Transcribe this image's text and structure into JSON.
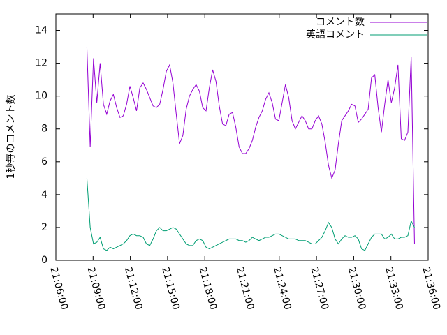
{
  "chart_data": {
    "type": "line",
    "y_label": "1秒毎のコメント数",
    "x": [
      "21:08:30",
      "21:08:46",
      "21:09:02",
      "21:09:18",
      "21:09:34",
      "21:09:50",
      "21:10:06",
      "21:10:22",
      "21:10:38",
      "21:10:54",
      "21:11:10",
      "21:11:26",
      "21:11:42",
      "21:11:58",
      "21:12:14",
      "21:12:30",
      "21:12:46",
      "21:13:02",
      "21:13:18",
      "21:13:34",
      "21:13:50",
      "21:14:06",
      "21:14:22",
      "21:14:38",
      "21:14:54",
      "21:15:10",
      "21:15:26",
      "21:15:42",
      "21:15:58",
      "21:16:14",
      "21:16:30",
      "21:16:46",
      "21:17:02",
      "21:17:18",
      "21:17:34",
      "21:17:50",
      "21:18:06",
      "21:18:22",
      "21:18:38",
      "21:18:54",
      "21:19:10",
      "21:19:26",
      "21:19:42",
      "21:19:58",
      "21:20:14",
      "21:20:30",
      "21:20:46",
      "21:21:02",
      "21:21:18",
      "21:21:34",
      "21:21:50",
      "21:22:06",
      "21:22:22",
      "21:22:38",
      "21:22:54",
      "21:23:10",
      "21:23:26",
      "21:23:42",
      "21:23:58",
      "21:24:14",
      "21:24:30",
      "21:24:46",
      "21:25:02",
      "21:25:18",
      "21:25:34",
      "21:25:50",
      "21:26:06",
      "21:26:22",
      "21:26:38",
      "21:26:54",
      "21:27:10",
      "21:27:26",
      "21:27:42",
      "21:27:58",
      "21:28:14",
      "21:28:30",
      "21:28:46",
      "21:29:02",
      "21:29:18",
      "21:29:34",
      "21:29:50",
      "21:30:06",
      "21:30:22",
      "21:30:38",
      "21:30:54",
      "21:31:10",
      "21:31:26",
      "21:31:42",
      "21:31:58",
      "21:32:14",
      "21:32:30",
      "21:32:46",
      "21:33:02",
      "21:33:18",
      "21:33:34",
      "21:33:50",
      "21:34:06",
      "21:34:22",
      "21:34:38",
      "21:34:54"
    ],
    "series": [
      {
        "name": "コメント数",
        "color": "#9400d3",
        "values": [
          13.0,
          6.9,
          12.3,
          9.6,
          12.0,
          9.5,
          8.9,
          9.7,
          10.1,
          9.3,
          8.7,
          8.8,
          9.5,
          10.6,
          9.9,
          9.1,
          10.5,
          10.8,
          10.4,
          9.9,
          9.4,
          9.3,
          9.5,
          10.4,
          11.5,
          11.9,
          10.8,
          8.9,
          7.1,
          7.6,
          9.2,
          10.0,
          10.4,
          10.7,
          10.3,
          9.3,
          9.1,
          10.5,
          11.6,
          10.9,
          9.4,
          8.3,
          8.2,
          8.9,
          9.0,
          8.1,
          6.9,
          6.5,
          6.5,
          6.8,
          7.3,
          8.1,
          8.7,
          9.1,
          9.8,
          10.2,
          9.6,
          8.6,
          8.5,
          9.6,
          10.7,
          9.9,
          8.5,
          8.0,
          8.4,
          8.8,
          8.5,
          8.0,
          8.0,
          8.5,
          8.8,
          8.3,
          7.2,
          5.8,
          5.0,
          5.5,
          7.1,
          8.5,
          8.8,
          9.1,
          9.5,
          9.4,
          8.4,
          8.6,
          8.9,
          9.2,
          11.1,
          11.3,
          9.3,
          7.8,
          9.5,
          11.0,
          9.6,
          10.5,
          11.9,
          7.4,
          7.3,
          7.8,
          12.4,
          1.0
        ]
      },
      {
        "name": "英語コメント",
        "color": "#009e73",
        "values": [
          5.0,
          2.0,
          1.0,
          1.1,
          1.4,
          0.7,
          0.6,
          0.8,
          0.7,
          0.8,
          0.9,
          1.0,
          1.2,
          1.5,
          1.6,
          1.5,
          1.5,
          1.4,
          1.0,
          0.9,
          1.3,
          1.8,
          2.0,
          1.8,
          1.8,
          1.9,
          2.0,
          1.9,
          1.6,
          1.3,
          1.0,
          0.9,
          0.9,
          1.2,
          1.3,
          1.2,
          0.8,
          0.7,
          0.8,
          0.9,
          1.0,
          1.1,
          1.2,
          1.3,
          1.3,
          1.3,
          1.2,
          1.2,
          1.1,
          1.2,
          1.4,
          1.3,
          1.2,
          1.3,
          1.4,
          1.4,
          1.5,
          1.6,
          1.6,
          1.5,
          1.4,
          1.3,
          1.3,
          1.3,
          1.2,
          1.2,
          1.2,
          1.1,
          1.0,
          1.0,
          1.2,
          1.4,
          1.8,
          2.3,
          2.0,
          1.3,
          1.0,
          1.3,
          1.5,
          1.4,
          1.4,
          1.5,
          1.3,
          0.7,
          0.6,
          1.0,
          1.4,
          1.6,
          1.6,
          1.6,
          1.3,
          1.4,
          1.6,
          1.3,
          1.3,
          1.4,
          1.4,
          1.5,
          2.4,
          2.0
        ]
      }
    ],
    "xlim": [
      "21:06:00",
      "21:36:00"
    ],
    "xticks": [
      "21:06:00",
      "21:09:00",
      "21:12:00",
      "21:15:00",
      "21:18:00",
      "21:21:00",
      "21:24:00",
      "21:27:00",
      "21:30:00",
      "21:33:00",
      "21:36:00"
    ],
    "ylim": [
      0,
      15
    ],
    "yticks": [
      0,
      2,
      4,
      6,
      8,
      10,
      12,
      14
    ],
    "grid": false,
    "legend": "top-right"
  }
}
